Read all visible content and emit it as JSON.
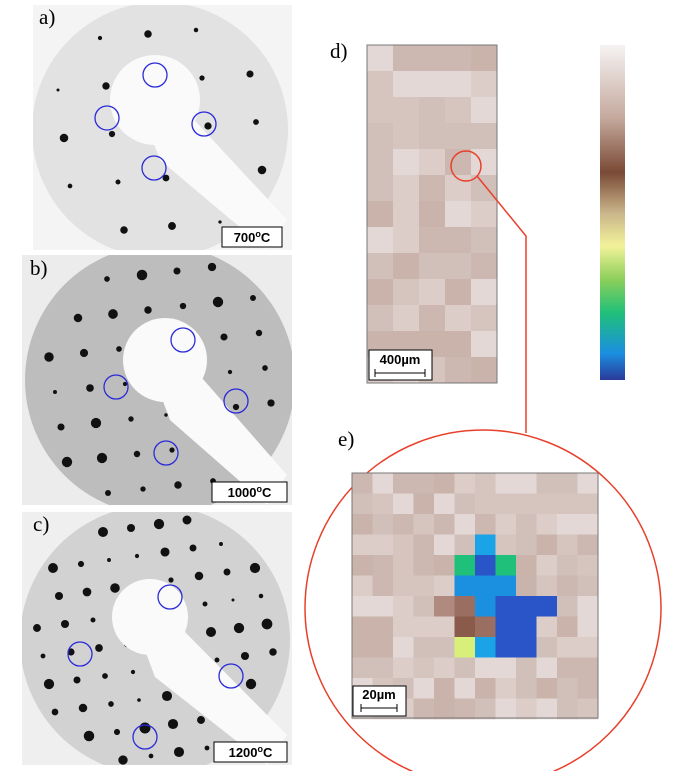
{
  "panels": [
    {
      "label": "a)",
      "temperature": {
        "number": "700",
        "sup": "o",
        "unit": "C"
      }
    },
    {
      "label": "b)",
      "temperature": {
        "number": "1000",
        "sup": "o",
        "unit": "C"
      }
    },
    {
      "label": "c)",
      "temperature": {
        "number": "1200",
        "sup": "o",
        "unit": "C"
      }
    },
    {
      "label": "d)",
      "scale_bar": "400µm"
    },
    {
      "label": "e)",
      "scale_bar": "20µm"
    }
  ]
}
